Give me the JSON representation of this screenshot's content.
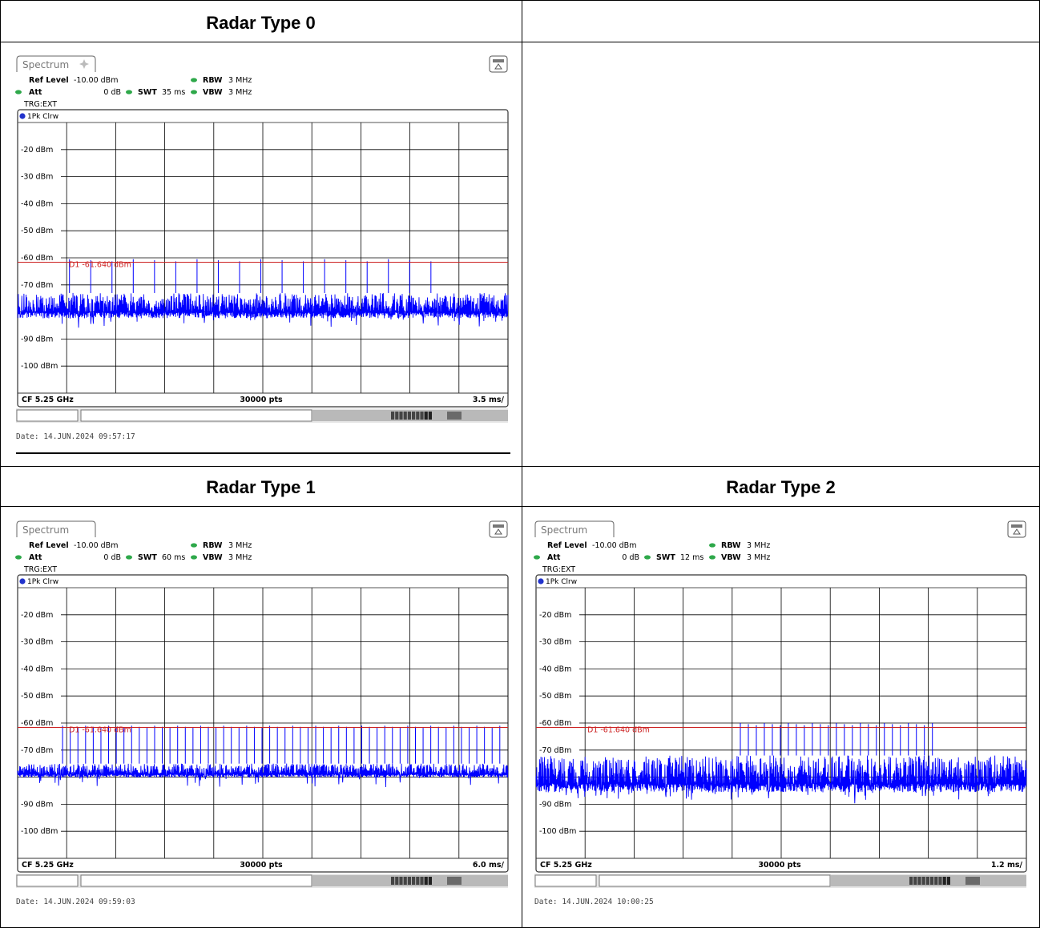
{
  "cells": [
    {
      "title": "Radar Type 0",
      "tab_label": "Spectrum",
      "ref_level_label": "Ref Level",
      "ref_level_value": "-10.00 dBm",
      "att_label": "Att",
      "att_value": "0 dB",
      "swt_label": "SWT",
      "swt_value": "35 ms",
      "rbw_label": "RBW",
      "rbw_value": "3 MHz",
      "vbw_label": "VBW",
      "vbw_value": "3 MHz",
      "trg": "TRG:EXT",
      "trace_label": "1Pk Clrw",
      "threshold_label": "D1  -61.640 dBm",
      "cf_label": "CF 5.25 GHz",
      "pts_label": "30000 pts",
      "div_label": "3.5 ms/",
      "date": "Date: 14.JUN.2024  09:57:17",
      "pin_icon": "pin-icon",
      "chart_data": {
        "type": "line",
        "title": "",
        "xlabel": "",
        "ylabel": "",
        "ylim": [
          -110,
          -10
        ],
        "y_ticks": [
          "-20 dBm",
          "-30 dBm",
          "-40 dBm",
          "-50 dBm",
          "-60 dBm",
          "-70 dBm",
          "-90 dBm",
          "-100 dBm"
        ],
        "y_tick_values": [
          -20,
          -30,
          -40,
          -50,
          -60,
          -70,
          -90,
          -100
        ],
        "x_range_ms": [
          0,
          35
        ],
        "threshold_dbm": -61.64,
        "noise_floor_dbm": [
          -84,
          -73
        ],
        "pulse_count": 18,
        "pulse_start_ms": 3.7,
        "pulse_end_ms": 29.5,
        "pulse_peak_dbm": -60.5
      }
    },
    {
      "title": "Radar Type 1",
      "tab_label": "Spectrum",
      "ref_level_label": "Ref Level",
      "ref_level_value": "-10.00 dBm",
      "att_label": "Att",
      "att_value": "0 dB",
      "swt_label": "SWT",
      "swt_value": "60 ms",
      "rbw_label": "RBW",
      "rbw_value": "3 MHz",
      "vbw_label": "VBW",
      "vbw_value": "3 MHz",
      "trg": "TRG:EXT",
      "trace_label": "1Pk Clrw",
      "threshold_label": "D1  -61.640 dBm",
      "cf_label": "CF 5.25 GHz",
      "pts_label": "30000 pts",
      "div_label": "6.0 ms/",
      "date": "Date: 14.JUN.2024  09:59:03",
      "chart_data": {
        "type": "line",
        "title": "",
        "xlabel": "",
        "ylabel": "",
        "ylim": [
          -110,
          -10
        ],
        "y_ticks": [
          "-20 dBm",
          "-30 dBm",
          "-40 dBm",
          "-50 dBm",
          "-60 dBm",
          "-70 dBm",
          "-90 dBm",
          "-100 dBm"
        ],
        "y_tick_values": [
          -20,
          -30,
          -40,
          -50,
          -60,
          -70,
          -90,
          -100
        ],
        "x_range_ms": [
          0,
          60
        ],
        "threshold_dbm": -61.64,
        "noise_floor_dbm": [
          -81,
          -75
        ],
        "pulse_count": 58,
        "pulse_start_ms": 5.5,
        "pulse_end_ms": 59,
        "pulse_peak_dbm": -61
      }
    },
    {
      "title": "Radar Type 2",
      "tab_label": "Spectrum",
      "ref_level_label": "Ref Level",
      "ref_level_value": "-10.00 dBm",
      "att_label": "Att",
      "att_value": "0 dB",
      "swt_label": "SWT",
      "swt_value": "12 ms",
      "rbw_label": "RBW",
      "rbw_value": "3 MHz",
      "vbw_label": "VBW",
      "vbw_value": "3 MHz",
      "trg": "TRG:EXT",
      "trace_label": "1Pk Clrw",
      "threshold_label": "D1  -61.640 dBm",
      "cf_label": "CF 5.25 GHz",
      "pts_label": "30000 pts",
      "div_label": "1.2 ms/",
      "date": "Date: 14.JUN.2024  10:00:25",
      "chart_data": {
        "type": "line",
        "title": "",
        "xlabel": "",
        "ylabel": "",
        "ylim": [
          -110,
          -10
        ],
        "y_ticks": [
          "-20 dBm",
          "-30 dBm",
          "-40 dBm",
          "-50 dBm",
          "-60 dBm",
          "-70 dBm",
          "-90 dBm",
          "-100 dBm"
        ],
        "y_tick_values": [
          -20,
          -30,
          -40,
          -50,
          -60,
          -70,
          -90,
          -100
        ],
        "x_range_ms": [
          0,
          12
        ],
        "threshold_dbm": -61.64,
        "noise_floor_dbm": [
          -88,
          -72
        ],
        "pulse_count": 25,
        "pulse_start_ms": 5.0,
        "pulse_end_ms": 9.7,
        "pulse_peak_dbm": -60
      }
    }
  ],
  "colors": {
    "trace": "#0000ff",
    "threshold": "#cc2222",
    "grid": "#000000",
    "led": "#2ea84a",
    "trace_dot": "#2233cc"
  }
}
